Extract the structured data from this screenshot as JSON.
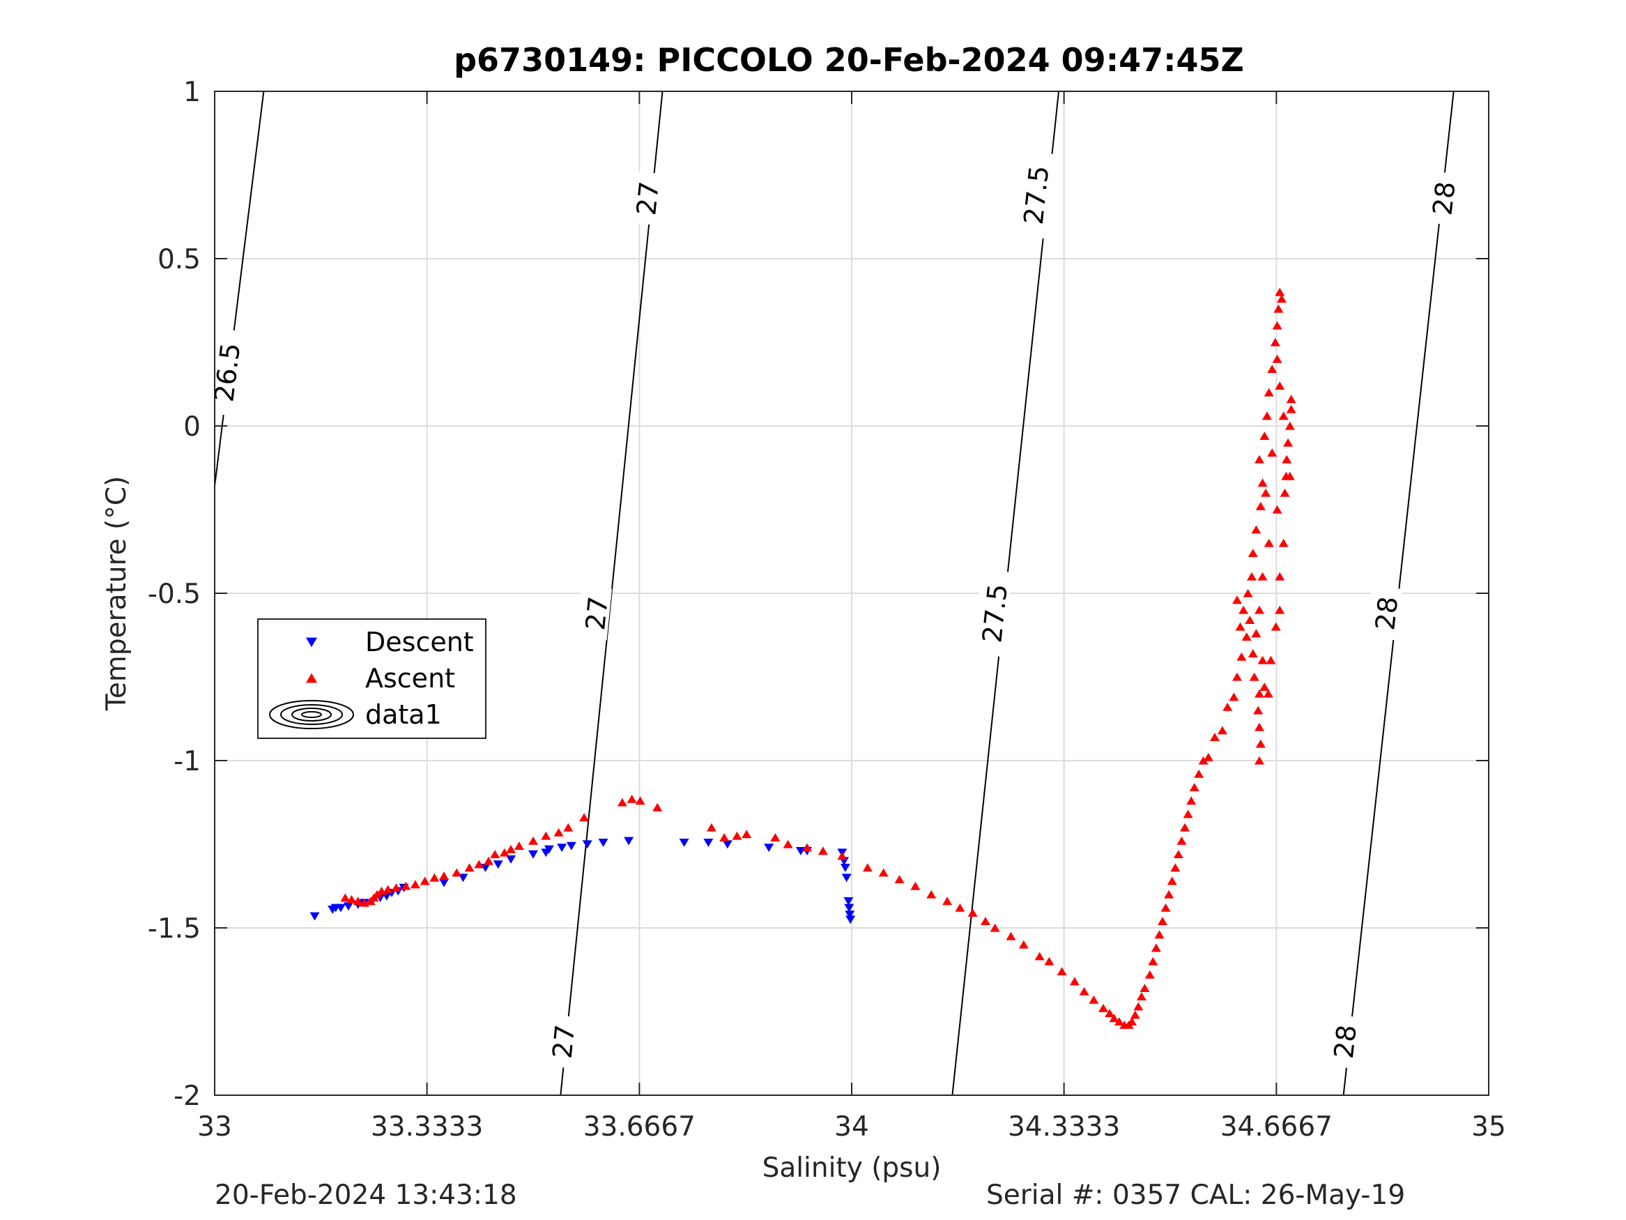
{
  "chart_data": {
    "type": "scatter",
    "title": "p6730149: PICCOLO 20-Feb-2024 09:47:45Z",
    "xlabel": "Salinity (psu)",
    "ylabel": "Temperature (°C)",
    "xlim": [
      33,
      35
    ],
    "ylim": [
      -2,
      1
    ],
    "xticks": [
      33,
      33.3333,
      33.6667,
      34,
      34.3333,
      34.6667,
      35
    ],
    "xtick_labels": [
      "33",
      "33.3333",
      "33.6667",
      "34",
      "34.3333",
      "34.6667",
      "35"
    ],
    "yticks": [
      -2,
      -1.5,
      -1,
      -0.5,
      0,
      0.5,
      1
    ],
    "ytick_labels": [
      "-2",
      "-1.5",
      "-1",
      "-0.5",
      "0",
      "0.5",
      "1"
    ],
    "grid": true,
    "legend_position": "middle-left",
    "legend": [
      {
        "label": "Descent",
        "marker": "triangle-down",
        "color": "#0000ff"
      },
      {
        "label": "Ascent",
        "marker": "triangle-up",
        "color": "#ff0000"
      },
      {
        "label": "data1",
        "marker": "contour-ellipses",
        "color": "#000000"
      }
    ],
    "density_contours": [
      {
        "label": "26.5",
        "points": [
          [
            33.0,
            -0.18
          ],
          [
            33.077,
            1.0
          ]
        ],
        "label_positions": [
          [
            33.02,
            0.16
          ]
        ]
      },
      {
        "label": "27",
        "points": [
          [
            33.543,
            -2.0
          ],
          [
            33.703,
            1.0
          ]
        ],
        "label_positions": [
          [
            33.548,
            -1.84
          ],
          [
            33.6,
            -0.56
          ],
          [
            33.68,
            0.68
          ]
        ]
      },
      {
        "label": "27.5",
        "points": [
          [
            34.158,
            -2.0
          ],
          [
            34.325,
            1.0
          ]
        ],
        "label_positions": [
          [
            34.225,
            -0.56
          ],
          [
            34.29,
            0.69
          ]
        ]
      },
      {
        "label": "28",
        "points": [
          [
            34.772,
            -2.0
          ],
          [
            34.945,
            1.0
          ]
        ],
        "label_positions": [
          [
            34.775,
            -1.84
          ],
          [
            34.84,
            -0.56
          ],
          [
            34.93,
            0.68
          ]
        ]
      }
    ],
    "series": [
      {
        "name": "Descent",
        "color": "#0000ff",
        "marker": "triangle-down",
        "points": [
          [
            33.157,
            -1.465
          ],
          [
            33.185,
            -1.445
          ],
          [
            33.19,
            -1.44
          ],
          [
            33.198,
            -1.44
          ],
          [
            33.21,
            -1.435
          ],
          [
            33.225,
            -1.43
          ],
          [
            33.235,
            -1.425
          ],
          [
            33.26,
            -1.41
          ],
          [
            33.27,
            -1.405
          ],
          [
            33.278,
            -1.395
          ],
          [
            33.288,
            -1.39
          ],
          [
            33.297,
            -1.38
          ],
          [
            33.36,
            -1.365
          ],
          [
            33.39,
            -1.35
          ],
          [
            33.425,
            -1.32
          ],
          [
            33.445,
            -1.31
          ],
          [
            33.465,
            -1.295
          ],
          [
            33.5,
            -1.28
          ],
          [
            33.52,
            -1.275
          ],
          [
            33.525,
            -1.265
          ],
          [
            33.545,
            -1.26
          ],
          [
            33.56,
            -1.255
          ],
          [
            33.585,
            -1.25
          ],
          [
            33.61,
            -1.245
          ],
          [
            33.65,
            -1.24
          ],
          [
            33.737,
            -1.245
          ],
          [
            33.775,
            -1.245
          ],
          [
            33.805,
            -1.25
          ],
          [
            33.87,
            -1.26
          ],
          [
            33.92,
            -1.27
          ],
          [
            33.93,
            -1.27
          ],
          [
            33.985,
            -1.275
          ],
          [
            33.988,
            -1.3
          ],
          [
            33.99,
            -1.32
          ],
          [
            33.992,
            -1.35
          ],
          [
            33.995,
            -1.42
          ],
          [
            33.996,
            -1.44
          ],
          [
            33.997,
            -1.46
          ],
          [
            33.998,
            -1.475
          ]
        ]
      },
      {
        "name": "Ascent",
        "color": "#ff0000",
        "marker": "triangle-up",
        "points": [
          [
            33.205,
            -1.41
          ],
          [
            33.215,
            -1.415
          ],
          [
            33.225,
            -1.42
          ],
          [
            33.235,
            -1.425
          ],
          [
            33.245,
            -1.42
          ],
          [
            33.25,
            -1.41
          ],
          [
            33.255,
            -1.4
          ],
          [
            33.262,
            -1.39
          ],
          [
            33.272,
            -1.385
          ],
          [
            33.285,
            -1.38
          ],
          [
            33.3,
            -1.375
          ],
          [
            33.315,
            -1.37
          ],
          [
            33.33,
            -1.36
          ],
          [
            33.345,
            -1.35
          ],
          [
            33.36,
            -1.345
          ],
          [
            33.38,
            -1.335
          ],
          [
            33.4,
            -1.32
          ],
          [
            33.415,
            -1.31
          ],
          [
            33.43,
            -1.3
          ],
          [
            33.44,
            -1.28
          ],
          [
            33.455,
            -1.275
          ],
          [
            33.465,
            -1.265
          ],
          [
            33.478,
            -1.255
          ],
          [
            33.5,
            -1.24
          ],
          [
            33.52,
            -1.225
          ],
          [
            33.54,
            -1.215
          ],
          [
            33.555,
            -1.2
          ],
          [
            33.58,
            -1.17
          ],
          [
            33.64,
            -1.125
          ],
          [
            33.655,
            -1.115
          ],
          [
            33.668,
            -1.12
          ],
          [
            33.695,
            -1.14
          ],
          [
            33.78,
            -1.2
          ],
          [
            33.8,
            -1.23
          ],
          [
            33.82,
            -1.225
          ],
          [
            33.835,
            -1.22
          ],
          [
            33.88,
            -1.23
          ],
          [
            33.9,
            -1.25
          ],
          [
            33.93,
            -1.26
          ],
          [
            33.955,
            -1.27
          ],
          [
            33.985,
            -1.285
          ],
          [
            34.025,
            -1.32
          ],
          [
            34.05,
            -1.335
          ],
          [
            34.075,
            -1.355
          ],
          [
            34.1,
            -1.375
          ],
          [
            34.125,
            -1.4
          ],
          [
            34.15,
            -1.42
          ],
          [
            34.17,
            -1.44
          ],
          [
            34.19,
            -1.455
          ],
          [
            34.21,
            -1.48
          ],
          [
            34.225,
            -1.5
          ],
          [
            34.25,
            -1.525
          ],
          [
            34.27,
            -1.55
          ],
          [
            34.295,
            -1.585
          ],
          [
            34.31,
            -1.6
          ],
          [
            34.33,
            -1.63
          ],
          [
            34.35,
            -1.66
          ],
          [
            34.365,
            -1.69
          ],
          [
            34.38,
            -1.715
          ],
          [
            34.395,
            -1.74
          ],
          [
            34.405,
            -1.755
          ],
          [
            34.412,
            -1.77
          ],
          [
            34.42,
            -1.78
          ],
          [
            34.428,
            -1.79
          ],
          [
            34.435,
            -1.79
          ],
          [
            34.44,
            -1.78
          ],
          [
            34.445,
            -1.76
          ],
          [
            34.45,
            -1.735
          ],
          [
            34.455,
            -1.705
          ],
          [
            34.46,
            -1.68
          ],
          [
            34.468,
            -1.64
          ],
          [
            34.473,
            -1.6
          ],
          [
            34.478,
            -1.56
          ],
          [
            34.483,
            -1.52
          ],
          [
            34.488,
            -1.48
          ],
          [
            34.493,
            -1.44
          ],
          [
            34.498,
            -1.4
          ],
          [
            34.503,
            -1.36
          ],
          [
            34.508,
            -1.32
          ],
          [
            34.513,
            -1.28
          ],
          [
            34.518,
            -1.24
          ],
          [
            34.523,
            -1.2
          ],
          [
            34.528,
            -1.16
          ],
          [
            34.533,
            -1.12
          ],
          [
            34.538,
            -1.08
          ],
          [
            34.545,
            -1.04
          ],
          [
            34.552,
            -1.0
          ],
          [
            34.56,
            -0.99
          ],
          [
            34.57,
            -0.93
          ],
          [
            34.582,
            -0.91
          ],
          [
            34.59,
            -0.84
          ],
          [
            34.6,
            -0.81
          ],
          [
            34.605,
            -0.75
          ],
          [
            34.612,
            -0.69
          ],
          [
            34.62,
            -0.63
          ],
          [
            34.625,
            -0.58
          ],
          [
            34.615,
            -0.55
          ],
          [
            34.622,
            -0.5
          ],
          [
            34.605,
            -0.52
          ],
          [
            34.61,
            -0.6
          ],
          [
            34.628,
            -0.45
          ],
          [
            34.63,
            -0.38
          ],
          [
            34.635,
            -0.31
          ],
          [
            34.642,
            -0.24
          ],
          [
            34.645,
            -0.17
          ],
          [
            34.64,
            -0.1
          ],
          [
            34.648,
            -0.03
          ],
          [
            34.652,
            0.03
          ],
          [
            34.655,
            0.1
          ],
          [
            34.66,
            0.17
          ],
          [
            34.665,
            0.25
          ],
          [
            34.668,
            0.3
          ],
          [
            34.67,
            0.35
          ],
          [
            34.672,
            0.4
          ],
          [
            34.675,
            0.38
          ],
          [
            34.668,
            0.2
          ],
          [
            34.672,
            0.12
          ],
          [
            34.66,
            -0.08
          ],
          [
            34.65,
            -0.2
          ],
          [
            34.655,
            -0.35
          ],
          [
            34.645,
            -0.45
          ],
          [
            34.64,
            -0.55
          ],
          [
            34.635,
            -0.62
          ],
          [
            34.645,
            -0.7
          ],
          [
            34.64,
            -0.8
          ],
          [
            34.64,
            -0.9
          ],
          [
            34.64,
            -1.0
          ],
          [
            34.642,
            -0.95
          ],
          [
            34.638,
            -0.85
          ],
          [
            34.632,
            -0.75
          ],
          [
            34.63,
            -0.68
          ],
          [
            34.668,
            -0.25
          ],
          [
            34.672,
            -0.45
          ],
          [
            34.678,
            -0.35
          ],
          [
            34.682,
            -0.15
          ],
          [
            34.688,
            0.0
          ],
          [
            34.69,
            0.08
          ],
          [
            34.685,
            -0.05
          ],
          [
            34.68,
            -0.2
          ],
          [
            34.672,
            -0.55
          ],
          [
            34.666,
            -0.6
          ],
          [
            34.658,
            -0.7
          ],
          [
            34.654,
            -0.8
          ],
          [
            34.648,
            -0.78
          ],
          [
            34.678,
            0.03
          ],
          [
            34.683,
            -0.1
          ],
          [
            34.688,
            -0.15
          ],
          [
            34.69,
            0.05
          ]
        ]
      }
    ]
  },
  "footer": {
    "left": "20-Feb-2024 13:43:18",
    "right": "Serial #: 0357  CAL: 26-May-19"
  }
}
